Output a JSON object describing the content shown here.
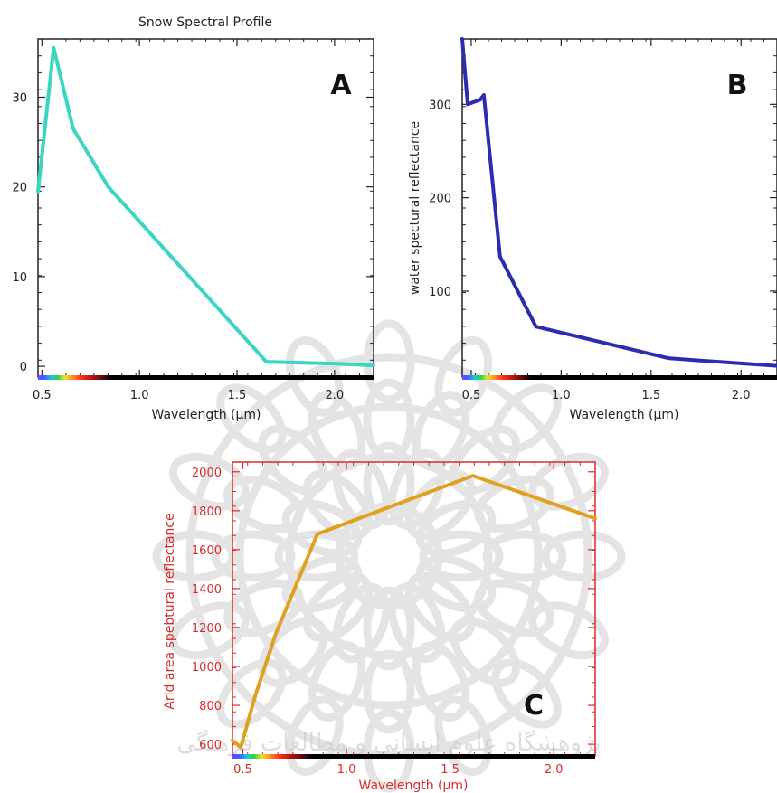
{
  "chart_data": [
    {
      "id": "A",
      "type": "line",
      "title": "Snow Spectral Profile",
      "panel_label": "A",
      "xlabel": "Wavelength (µm)",
      "ylabel": "",
      "xlim": [
        0.48,
        2.2
      ],
      "ylim": [
        -1.2,
        36.5
      ],
      "xticks": [
        0.5,
        1.0,
        1.5,
        2.0
      ],
      "xtick_labels": [
        "0.5",
        "1.0",
        "1.5",
        "2.0"
      ],
      "yticks": [
        0,
        10,
        20,
        30
      ],
      "ytick_labels": [
        "0",
        "10",
        "20",
        "30"
      ],
      "frame_color": "#222222",
      "text_color": "#222222",
      "spectrum_bar": true,
      "series": [
        {
          "color": "#3ad6c2",
          "x": [
            0.48,
            0.56,
            0.66,
            0.84,
            1.65,
            2.0,
            2.2
          ],
          "y": [
            19.5,
            35.5,
            26.5,
            20.0,
            0.5,
            0.3,
            0.1
          ]
        }
      ]
    },
    {
      "id": "B",
      "type": "line",
      "title": "",
      "panel_label": "B",
      "xlabel": "Wavelength (µm)",
      "ylabel": "water spectural reflectance",
      "xlim": [
        0.45,
        2.2
      ],
      "ylim": [
        8,
        370
      ],
      "xticks": [
        0.5,
        1.0,
        1.5,
        2.0
      ],
      "xtick_labels": [
        "0.5",
        "1.0",
        "1.5",
        "2.0"
      ],
      "yticks": [
        100,
        200,
        300
      ],
      "ytick_labels": [
        "100",
        "200",
        "300"
      ],
      "frame_color": "#222222",
      "text_color": "#222222",
      "spectrum_bar": true,
      "series": [
        {
          "color": "#2c2cb0",
          "x": [
            0.45,
            0.48,
            0.55,
            0.57,
            0.66,
            0.86,
            1.6,
            2.2
          ],
          "y": [
            370,
            300,
            305,
            310,
            137,
            62,
            28,
            20
          ]
        }
      ]
    },
    {
      "id": "C",
      "type": "line",
      "title": "",
      "panel_label": "C",
      "xlabel": "Wavelength (µm)",
      "ylabel": "Arid area spebtural reflectance",
      "xlim": [
        0.45,
        2.2
      ],
      "ylim": [
        540,
        2050
      ],
      "xticks": [
        0.5,
        1.0,
        1.5,
        2.0
      ],
      "xtick_labels": [
        "0.5",
        "1.0",
        "1.5",
        "2.0"
      ],
      "yticks": [
        600,
        800,
        1000,
        1200,
        1400,
        1600,
        1800,
        2000
      ],
      "ytick_labels": [
        "600",
        "800",
        "1000",
        "1200",
        "1400",
        "1600",
        "1800",
        "2000"
      ],
      "frame_color": "#d92b2b",
      "text_color": "#d92b2b",
      "spectrum_bar": true,
      "series": [
        {
          "color": "#e0a020",
          "x": [
            0.45,
            0.49,
            0.56,
            0.66,
            0.86,
            1.61,
            2.2
          ],
          "y": [
            620,
            585,
            850,
            1170,
            1680,
            1980,
            1760
          ]
        }
      ]
    }
  ],
  "watermark": {
    "text": "پژوهشگاه علوم انسانی و مطالعات فرهنگی",
    "color": "#cfcfcf"
  },
  "spectrum_colors": [
    "#7a3cff",
    "#2f6bff",
    "#20c6d8",
    "#2fd24a",
    "#f2e02a",
    "#ff9a1f",
    "#ff2a1a",
    "#a01010",
    "#000000"
  ]
}
